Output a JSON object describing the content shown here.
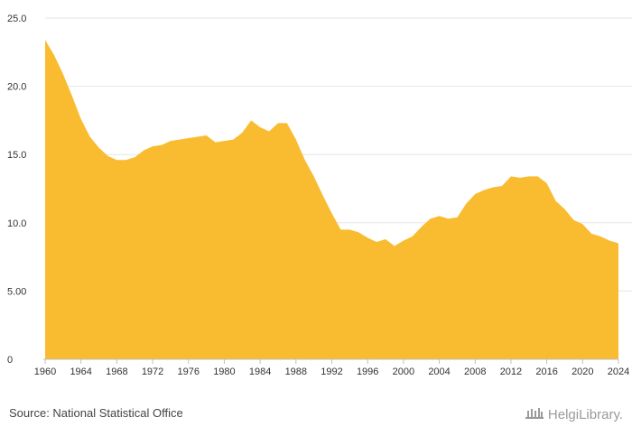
{
  "chart_data": {
    "type": "area",
    "title": "",
    "xlabel": "",
    "ylabel": "",
    "color": "#F9BC30",
    "grid": true,
    "ylim": [
      0,
      25
    ],
    "xlim": [
      1960,
      2024
    ],
    "y_ticks": [
      {
        "value": 0,
        "label": "0"
      },
      {
        "value": 5,
        "label": "5.00"
      },
      {
        "value": 10,
        "label": "10.0"
      },
      {
        "value": 15,
        "label": "15.0"
      },
      {
        "value": 20,
        "label": "20.0"
      },
      {
        "value": 25,
        "label": "25.0"
      }
    ],
    "x_ticks": [
      1960,
      1964,
      1968,
      1972,
      1976,
      1980,
      1984,
      1988,
      1992,
      1996,
      2000,
      2004,
      2008,
      2012,
      2016,
      2020,
      2024
    ],
    "x": [
      1960,
      1961,
      1962,
      1963,
      1964,
      1965,
      1966,
      1967,
      1968,
      1969,
      1970,
      1971,
      1972,
      1973,
      1974,
      1975,
      1976,
      1977,
      1978,
      1979,
      1980,
      1981,
      1982,
      1983,
      1984,
      1985,
      1986,
      1987,
      1988,
      1989,
      1990,
      1991,
      1992,
      1993,
      1994,
      1995,
      1996,
      1997,
      1998,
      1999,
      2000,
      2001,
      2002,
      2003,
      2004,
      2005,
      2006,
      2007,
      2008,
      2009,
      2010,
      2011,
      2012,
      2013,
      2014,
      2015,
      2016,
      2017,
      2018,
      2019,
      2020,
      2021,
      2022,
      2023,
      2024
    ],
    "values": [
      23.4,
      22.3,
      20.9,
      19.3,
      17.6,
      16.3,
      15.5,
      14.9,
      14.6,
      14.6,
      14.8,
      15.3,
      15.6,
      15.7,
      16.0,
      16.1,
      16.2,
      16.3,
      16.4,
      15.9,
      16.0,
      16.1,
      16.6,
      17.5,
      17.0,
      16.7,
      17.3,
      17.3,
      16.1,
      14.6,
      13.4,
      12.0,
      10.7,
      9.5,
      9.5,
      9.3,
      8.9,
      8.6,
      8.8,
      8.3,
      8.7,
      9.0,
      9.7,
      10.3,
      10.5,
      10.3,
      10.4,
      11.4,
      12.1,
      12.4,
      12.6,
      12.7,
      13.4,
      13.3,
      13.4,
      13.4,
      12.9,
      11.6,
      11.0,
      10.2,
      9.9,
      9.2,
      9.0,
      8.7,
      8.5
    ]
  },
  "footer": {
    "source": "Source: National Statistical Office",
    "brand": "HelgiLibrary."
  }
}
